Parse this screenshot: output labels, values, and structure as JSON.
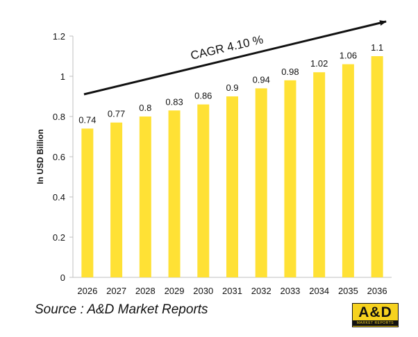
{
  "chart_data": {
    "type": "bar",
    "categories": [
      "2026",
      "2027",
      "2028",
      "2029",
      "2030",
      "2031",
      "2032",
      "2033",
      "2034",
      "2035",
      "2036"
    ],
    "values": [
      0.74,
      0.77,
      0.8,
      0.83,
      0.86,
      0.9,
      0.94,
      0.98,
      1.02,
      1.06,
      1.1
    ],
    "data_labels": [
      "0.74",
      "0.77",
      "0.8",
      "0.83",
      "0.86",
      "0.9",
      "0.94",
      "0.98",
      "1.02",
      "1.06",
      "1.1"
    ],
    "ylabel": "In USD Billion",
    "xlabel": "",
    "ylim": [
      0,
      1.2
    ],
    "yticks": [
      "0",
      "0.2",
      "0.4",
      "0.6",
      "0.8",
      "1",
      "1.2"
    ],
    "grid": false,
    "annotation": "CAGR  4.10 %",
    "bar_color": "#ffe135"
  },
  "source": "Source : A&D Market Reports",
  "logo": {
    "main": "A&D",
    "sub": "MARKET REPORTS",
    "color": "#f6d21f"
  }
}
